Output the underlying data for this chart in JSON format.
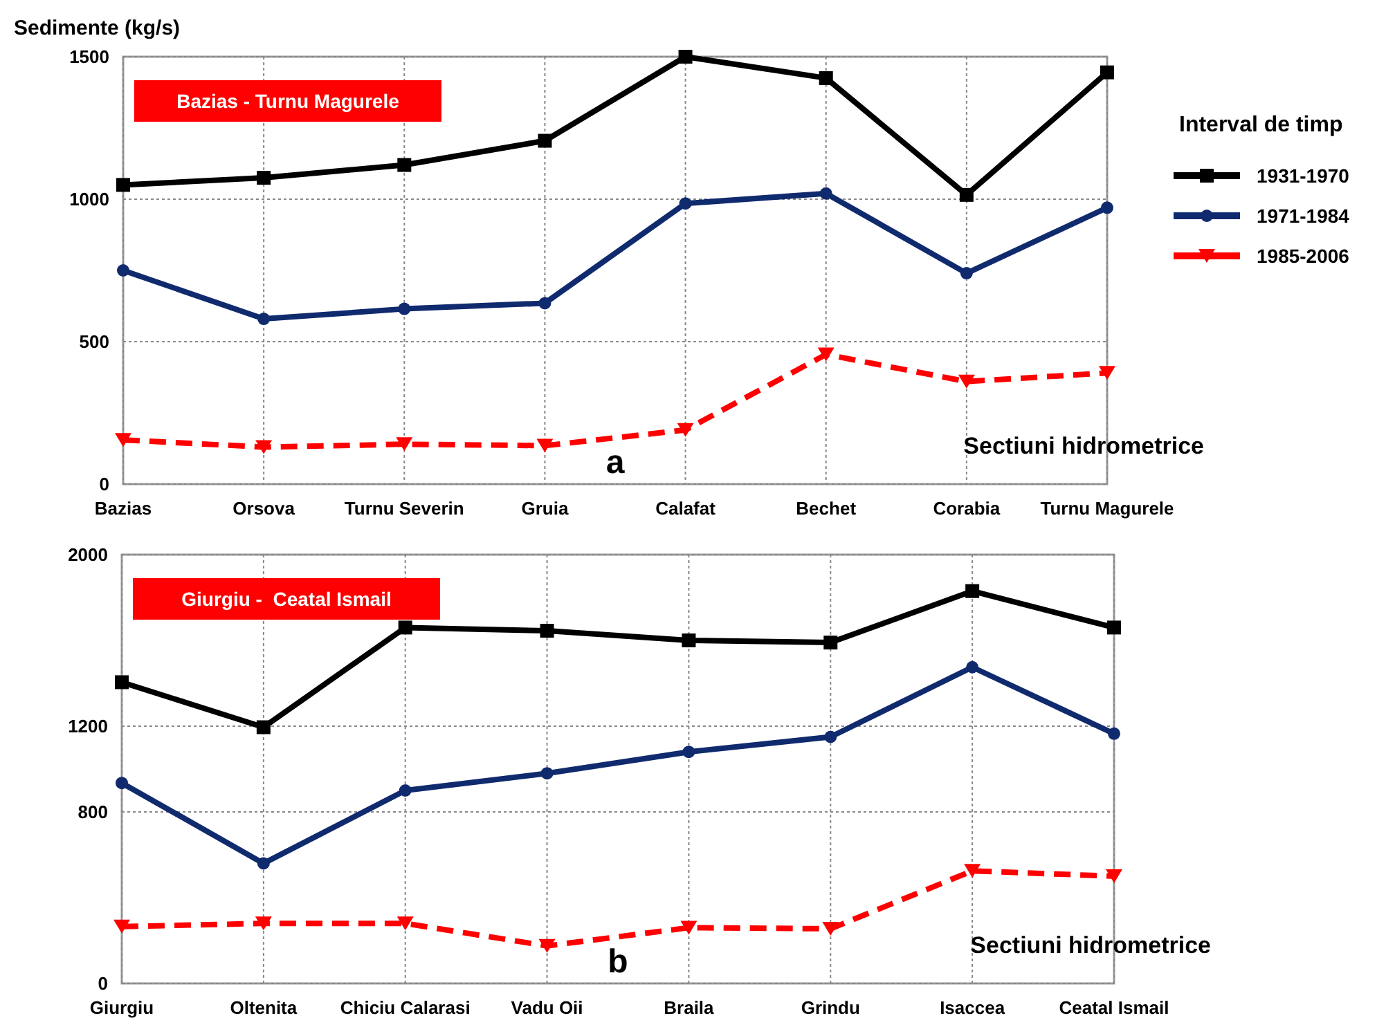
{
  "chart_data": [
    {
      "type": "line",
      "title": "Bazias - Turnu Magurele",
      "ylabel": "Sedimente (kg/s)",
      "xlabel": "Sectiuni hidrometrice",
      "legend_title": "Interval de timp",
      "legend": "right",
      "grid": true,
      "categories": [
        "Bazias",
        "Orsova",
        "Turnu Severin",
        "Gruia",
        "Calafat",
        "Bechet",
        "Corabia",
        "Turnu Magurele"
      ],
      "ylim": [
        0,
        1500
      ],
      "yticks": [
        0,
        500,
        1000,
        1500
      ],
      "annotations": [
        "a"
      ],
      "series": [
        {
          "name": "1931-1970",
          "color": "#000000",
          "marker": "square",
          "line_style": "solid",
          "values": [
            1050,
            1075,
            1120,
            1205,
            1500,
            1425,
            1015,
            1445
          ]
        },
        {
          "name": "1971-1984",
          "color": "#102a6e",
          "marker": "circle",
          "line_style": "solid",
          "values": [
            750,
            580,
            615,
            635,
            985,
            1020,
            740,
            970
          ]
        },
        {
          "name": "1985-2006",
          "color": "#ff0000",
          "marker": "triangle",
          "line_style": "dashed",
          "values": [
            155,
            130,
            140,
            135,
            190,
            455,
            360,
            390
          ]
        }
      ]
    },
    {
      "type": "line",
      "title": "Giurgiu -  Ceatal Ismail",
      "xlabel": "Sectiuni hidrometrice",
      "grid": true,
      "categories": [
        "Giurgiu",
        "Oltenita",
        "Chiciu Calarasi",
        "Vadu Oii",
        "Braila",
        "Grindu",
        "Isaccea",
        "Ceatal Ismail"
      ],
      "ylim": [
        0,
        2000
      ],
      "yticks": [
        0,
        800,
        1200,
        2000
      ],
      "annotations": [
        "b"
      ],
      "series": [
        {
          "color": "#000000",
          "marker": "square",
          "line_style": "solid",
          "values": [
            1405,
            1195,
            1660,
            1645,
            1600,
            1590,
            1830,
            1660
          ]
        },
        {
          "color": "#102a6e",
          "marker": "circle",
          "line_style": "solid",
          "values": [
            935,
            560,
            900,
            980,
            1080,
            1150,
            1475,
            1165
          ]
        },
        {
          "color": "#ff0000",
          "marker": "triangle",
          "line_style": "dashed",
          "values": [
            265,
            280,
            280,
            175,
            260,
            255,
            525,
            500
          ]
        }
      ]
    }
  ]
}
